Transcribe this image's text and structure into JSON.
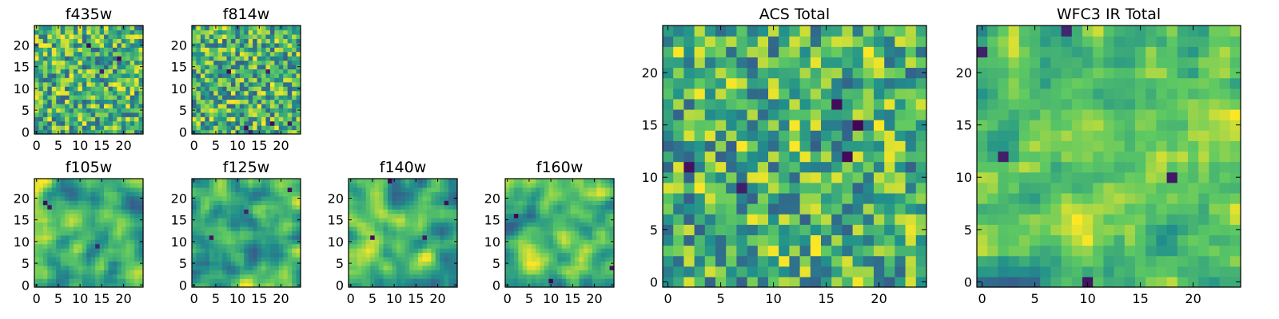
{
  "figure": {
    "colormap": [
      "#440154",
      "#3b528b",
      "#21918c",
      "#5ec962",
      "#fde725"
    ]
  },
  "chart_data": [
    {
      "type": "heatmap",
      "title": "f435w",
      "grid_size": 25,
      "xticks": [
        "0",
        "5",
        "10",
        "15",
        "20"
      ],
      "yticks": [
        "0",
        "5",
        "10",
        "15",
        "20"
      ],
      "xlim": [
        -0.5,
        24.5
      ],
      "ylim": [
        -0.5,
        24.5
      ],
      "seed": 11,
      "smooth": 0,
      "spots": 3
    },
    {
      "type": "heatmap",
      "title": "f814w",
      "grid_size": 25,
      "xticks": [
        "0",
        "5",
        "10",
        "15",
        "20"
      ],
      "yticks": [
        "0",
        "5",
        "10",
        "15",
        "20"
      ],
      "xlim": [
        -0.5,
        24.5
      ],
      "ylim": [
        -0.5,
        24.5
      ],
      "seed": 23,
      "smooth": 0,
      "spots": 6
    },
    {
      "type": "heatmap",
      "title": "f105w",
      "grid_size": 25,
      "xticks": [
        "0",
        "5",
        "10",
        "15",
        "20"
      ],
      "yticks": [
        "0",
        "5",
        "10",
        "15",
        "20"
      ],
      "xlim": [
        -0.5,
        24.5
      ],
      "ylim": [
        -0.5,
        24.5
      ],
      "seed": 37,
      "smooth": 2,
      "spots": 3
    },
    {
      "type": "heatmap",
      "title": "f125w",
      "grid_size": 25,
      "xticks": [
        "0",
        "5",
        "10",
        "15",
        "20"
      ],
      "yticks": [
        "0",
        "5",
        "10",
        "15",
        "20"
      ],
      "xlim": [
        -0.5,
        24.5
      ],
      "ylim": [
        -0.5,
        24.5
      ],
      "seed": 41,
      "smooth": 2,
      "spots": 3
    },
    {
      "type": "heatmap",
      "title": "f140w",
      "grid_size": 25,
      "xticks": [
        "0",
        "5",
        "10",
        "15",
        "20"
      ],
      "yticks": [
        "0",
        "5",
        "10",
        "15",
        "20"
      ],
      "xlim": [
        -0.5,
        24.5
      ],
      "ylim": [
        -0.5,
        24.5
      ],
      "seed": 53,
      "smooth": 2,
      "spots": 4
    },
    {
      "type": "heatmap",
      "title": "f160w",
      "grid_size": 25,
      "xticks": [
        "0",
        "5",
        "10",
        "15",
        "20"
      ],
      "yticks": [
        "0",
        "5",
        "10",
        "15",
        "20"
      ],
      "xlim": [
        -0.5,
        24.5
      ],
      "ylim": [
        -0.5,
        24.5
      ],
      "seed": 67,
      "smooth": 2,
      "spots": 3
    },
    {
      "type": "heatmap",
      "title": "ACS Total",
      "grid_size": 25,
      "xticks": [
        "0",
        "5",
        "10",
        "15",
        "20"
      ],
      "yticks": [
        "0",
        "5",
        "10",
        "15",
        "20"
      ],
      "xlim": [
        -0.5,
        24.5
      ],
      "ylim": [
        -0.5,
        24.5
      ],
      "seed": 79,
      "smooth": 0,
      "spots": 5
    },
    {
      "type": "heatmap",
      "title": "WFC3 IR Total",
      "grid_size": 25,
      "xticks": [
        "0",
        "5",
        "10",
        "15",
        "20"
      ],
      "yticks": [
        "0",
        "5",
        "10",
        "15",
        "20"
      ],
      "xlim": [
        -0.5,
        24.5
      ],
      "ylim": [
        -0.5,
        24.5
      ],
      "seed": 97,
      "smooth": 1,
      "spots": 5
    }
  ]
}
